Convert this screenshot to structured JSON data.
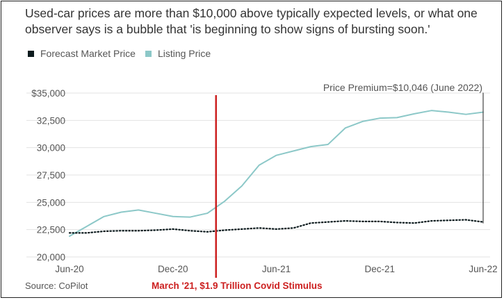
{
  "title": "Used-car prices are more than $10,000 above typically expected levels, or what one observer says is a bubble that 'is beginning to show signs of bursting soon.'",
  "legend": [
    {
      "label": "Forecast Market Price",
      "color": "#0d1b1e"
    },
    {
      "label": "Listing Price",
      "color": "#8cc8c8"
    }
  ],
  "source": "Source: CoPilot",
  "annotation": {
    "premium_label": "Price Premium=$10,046 (June 2022)",
    "stimulus_label": "March '21, $1.9 Trillion Covid Stimulus",
    "stimulus_color": "#cc1f1f"
  },
  "chart_data": {
    "type": "line",
    "title": "Used-car prices are more than $10,000 above typically expected levels",
    "xlabel": "",
    "ylabel": "",
    "ylim": [
      20000,
      35000
    ],
    "yticks": [
      20000,
      22500,
      25000,
      27500,
      30000,
      32500,
      35000
    ],
    "ytick_labels": [
      "20,000",
      "22,500",
      "25,000",
      "27,500",
      "30,000",
      "32,500",
      "$35,000"
    ],
    "xticks": [
      0,
      6,
      12,
      18,
      24
    ],
    "xtick_labels": [
      "Jun-20",
      "Dec-20",
      "Jun-21",
      "Dec-21",
      "Jun-22"
    ],
    "x": [
      0,
      1,
      2,
      3,
      4,
      5,
      6,
      7,
      8,
      9,
      10,
      11,
      12,
      13,
      14,
      15,
      16,
      17,
      18,
      19,
      20,
      21,
      22,
      23,
      24
    ],
    "series": [
      {
        "name": "Listing Price",
        "color": "#8cc8c8",
        "style": "solid",
        "values": [
          21900,
          22800,
          23700,
          24100,
          24300,
          24000,
          23700,
          23650,
          24000,
          25100,
          26500,
          28400,
          29300,
          29700,
          30100,
          30300,
          31800,
          32400,
          32700,
          32750,
          33100,
          33400,
          33250,
          33050,
          33250
        ]
      },
      {
        "name": "Forecast Market Price",
        "color": "#0d1b1e",
        "style": "dotted",
        "values": [
          22200,
          22200,
          22350,
          22400,
          22400,
          22450,
          22550,
          22400,
          22300,
          22450,
          22550,
          22650,
          22550,
          22650,
          23100,
          23200,
          23300,
          23250,
          23250,
          23150,
          23100,
          23300,
          23350,
          23400,
          23200
        ]
      }
    ],
    "stimulus_x": 8.5
  }
}
